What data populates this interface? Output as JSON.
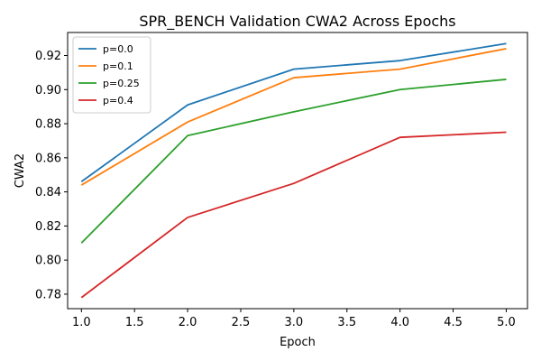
{
  "chart_data": {
    "type": "line",
    "title": "SPR_BENCH Validation CWA2 Across Epochs",
    "xlabel": "Epoch",
    "ylabel": "CWA2",
    "x": [
      1,
      2,
      3,
      4,
      5
    ],
    "xlim": [
      0.87,
      5.2
    ],
    "ylim": [
      0.7715,
      0.9335
    ],
    "xticks": [
      1.0,
      1.5,
      2.0,
      2.5,
      3.0,
      3.5,
      4.0,
      4.5,
      5.0
    ],
    "yticks": [
      0.78,
      0.8,
      0.82,
      0.84,
      0.86,
      0.88,
      0.9,
      0.92
    ],
    "grid": false,
    "legend_position": "top-left",
    "series": [
      {
        "name": "p=0.0",
        "color": "#1f77b4",
        "values": [
          0.846,
          0.891,
          0.912,
          0.917,
          0.927
        ]
      },
      {
        "name": "p=0.1",
        "color": "#ff7f0e",
        "values": [
          0.844,
          0.881,
          0.907,
          0.912,
          0.924
        ]
      },
      {
        "name": "p=0.25",
        "color": "#2ca02c",
        "values": [
          0.81,
          0.873,
          0.887,
          0.9,
          0.906
        ]
      },
      {
        "name": "p=0.4",
        "color": "#d62728",
        "values": [
          0.778,
          0.825,
          0.845,
          0.872,
          0.875
        ]
      }
    ]
  }
}
